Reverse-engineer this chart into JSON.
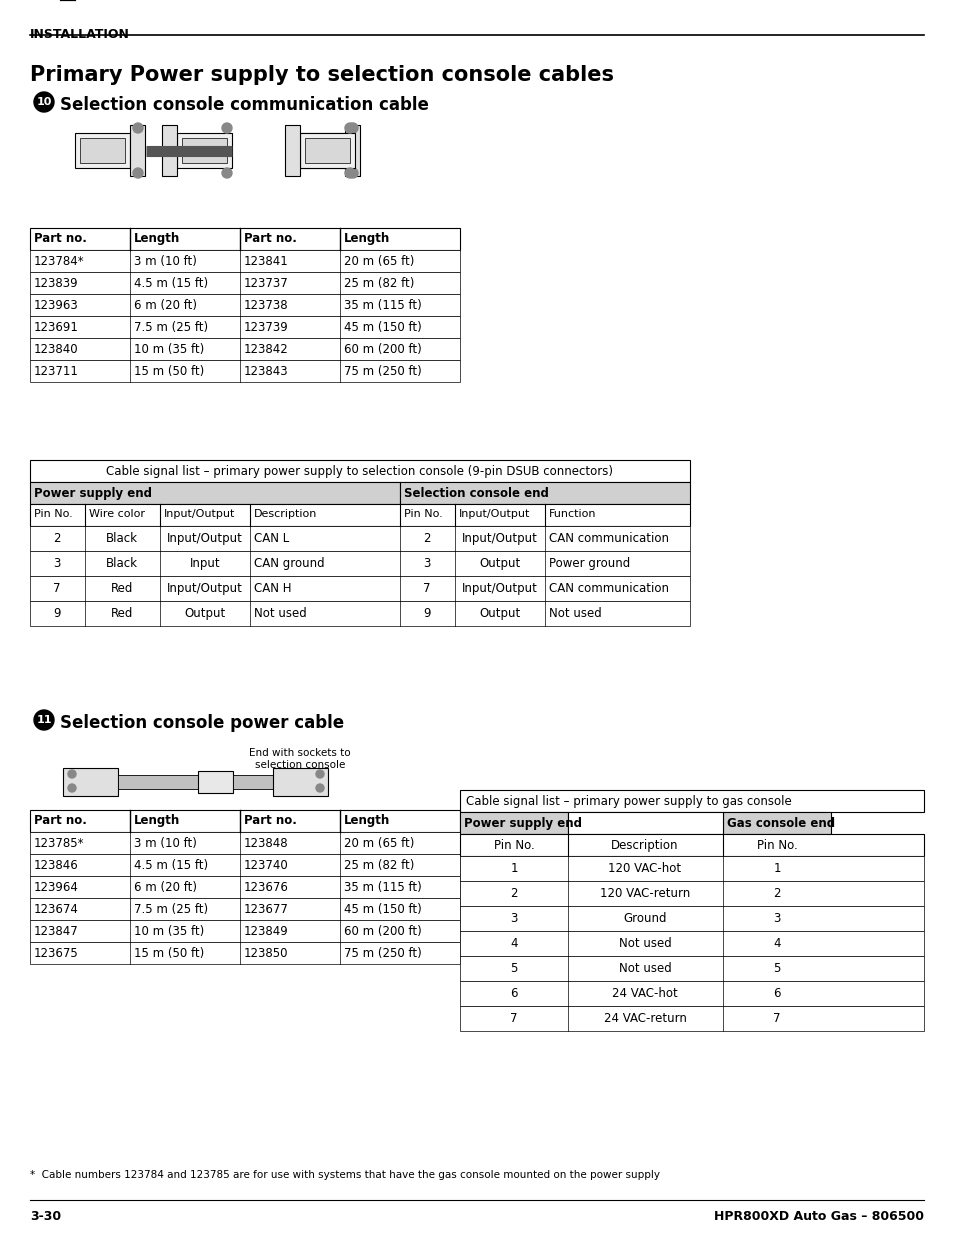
{
  "page_header": "INSTALLATION",
  "main_title": "Primary Power supply to selection console cables",
  "section10_label": "10",
  "section10_title": "Selection console communication cable",
  "section11_label": "11",
  "section11_title": "Selection console power cable",
  "parts_table1": {
    "headers": [
      "Part no.",
      "Length",
      "Part no.",
      "Length"
    ],
    "rows": [
      [
        "123784*",
        "3 m (10 ft)",
        "123841",
        "20 m (65 ft)"
      ],
      [
        "123839",
        "4.5 m (15 ft)",
        "123737",
        "25 m (82 ft)"
      ],
      [
        "123963",
        "6 m (20 ft)",
        "123738",
        "35 m (115 ft)"
      ],
      [
        "123691",
        "7.5 m (25 ft)",
        "123739",
        "45 m (150 ft)"
      ],
      [
        "123840",
        "10 m (35 ft)",
        "123842",
        "60 m (200 ft)"
      ],
      [
        "123711",
        "15 m (50 ft)",
        "123843",
        "75 m (250 ft)"
      ]
    ]
  },
  "signal_table1_title": "Cable signal list – primary power supply to selection console (9-pin DSUB connectors)",
  "signal_table1_header1": "Power supply end",
  "signal_table1_header2": "Selection console end",
  "signal_table1_col_headers": [
    "Pin No.",
    "Wire color",
    "Input/Output",
    "Description",
    "Pin No.",
    "Input/Output",
    "Function"
  ],
  "signal_table1_rows": [
    [
      "2",
      "Black",
      "Input/Output",
      "CAN L",
      "2",
      "Input/Output",
      "CAN communication"
    ],
    [
      "3",
      "Black",
      "Input",
      "CAN ground",
      "3",
      "Output",
      "Power ground"
    ],
    [
      "7",
      "Red",
      "Input/Output",
      "CAN H",
      "7",
      "Input/Output",
      "CAN communication"
    ],
    [
      "9",
      "Red",
      "Output",
      "Not used",
      "9",
      "Output",
      "Not used"
    ]
  ],
  "end_label": "End with sockets to\nselection console",
  "parts_table2": {
    "headers": [
      "Part no.",
      "Length",
      "Part no.",
      "Length"
    ],
    "rows": [
      [
        "123785*",
        "3 m (10 ft)",
        "123848",
        "20 m (65 ft)"
      ],
      [
        "123846",
        "4.5 m (15 ft)",
        "123740",
        "25 m (82 ft)"
      ],
      [
        "123964",
        "6 m (20 ft)",
        "123676",
        "35 m (115 ft)"
      ],
      [
        "123674",
        "7.5 m (25 ft)",
        "123677",
        "45 m (150 ft)"
      ],
      [
        "123847",
        "10 m (35 ft)",
        "123849",
        "60 m (200 ft)"
      ],
      [
        "123675",
        "15 m (50 ft)",
        "123850",
        "75 m (250 ft)"
      ]
    ]
  },
  "signal_table2_title": "Cable signal list – primary power supply to gas console",
  "signal_table2_header1": "Power supply end",
  "signal_table2_header2": "Gas console end",
  "signal_table2_col_headers": [
    "Pin No.",
    "Description",
    "Pin No."
  ],
  "signal_table2_rows": [
    [
      "1",
      "120 VAC-hot",
      "1"
    ],
    [
      "2",
      "120 VAC-return",
      "2"
    ],
    [
      "3",
      "Ground",
      "3"
    ],
    [
      "4",
      "Not used",
      "4"
    ],
    [
      "5",
      "Not used",
      "5"
    ],
    [
      "6",
      "24 VAC-hot",
      "6"
    ],
    [
      "7",
      "24 VAC-return",
      "7"
    ]
  ],
  "footnote": "*  Cable numbers 123784 and 123785 are for use with systems that have the gas console mounted on the power supply",
  "footer_left": "3-30",
  "footer_right": "HPR800XD Auto Gas – 806500",
  "bg_color": "#ffffff",
  "table_header_bg": "#d0d0d0",
  "table_border": "#000000",
  "text_color": "#000000"
}
